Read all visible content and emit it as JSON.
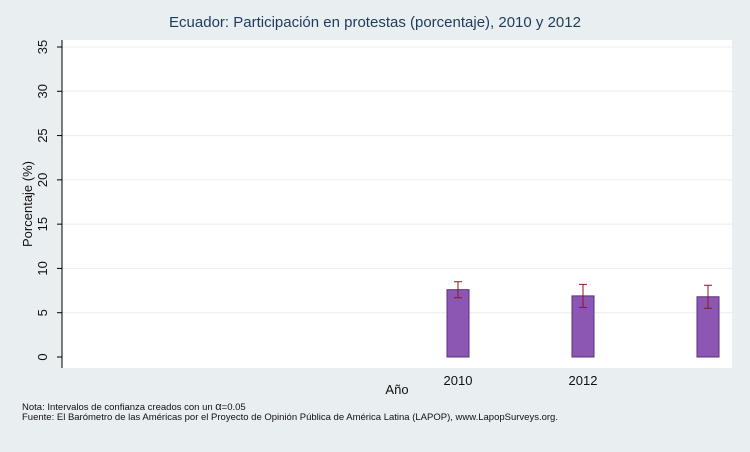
{
  "chart_data": {
    "type": "bar",
    "title": "Ecuador: Participación en protestas (porcentaje), 2010 y 2012",
    "xlabel": "Año",
    "ylabel": "Porcentaje (%)",
    "ylim": [
      0,
      36
    ],
    "yticks": [
      0,
      5,
      10,
      15,
      20,
      25,
      30,
      35
    ],
    "grid": true,
    "categories": [
      "2010",
      "2012",
      ""
    ],
    "values": [
      7.6,
      6.9,
      6.8
    ],
    "ci_low": [
      6.7,
      5.6,
      5.5
    ],
    "ci_high": [
      8.5,
      8.2,
      8.1
    ],
    "bar_color": "#8b57b3",
    "bar_edge_color": "#5d2f7f",
    "errorbar_color": "#8b1a1a"
  },
  "notes": {
    "note_prefix": "Nota: Intervalos de confianza creados con un ",
    "alpha_symbol": "α",
    "note_suffix": "=0.05",
    "source": "Fuente: El Barómetro de las Américas por el Proyecto de Opinión Pública de América Latina (LAPOP), www.LapopSurveys.org."
  }
}
